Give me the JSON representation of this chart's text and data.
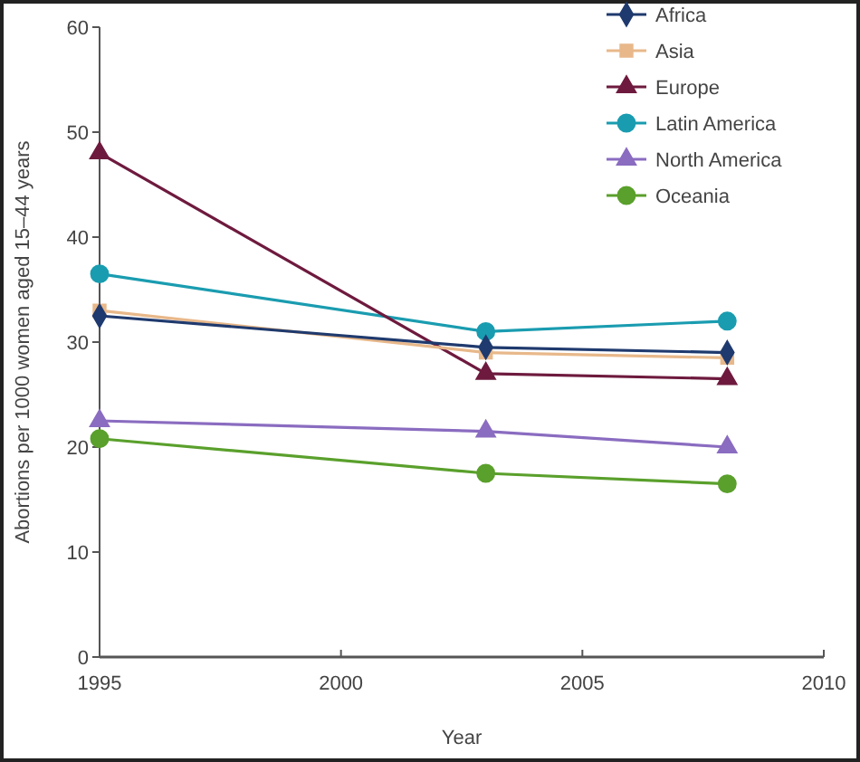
{
  "chart_data": {
    "type": "line",
    "xlabel": "Year",
    "ylabel": "Abortions per 1000 women aged 15–44 years",
    "x": [
      1995,
      2003,
      2008
    ],
    "xlim": [
      1995,
      2010
    ],
    "xticks": [
      1995,
      2000,
      2005,
      2010
    ],
    "ylim": [
      0,
      60
    ],
    "yticks": [
      0,
      10,
      20,
      30,
      40,
      50,
      60
    ],
    "grid": false,
    "legend": "top right",
    "series": [
      {
        "name": "Africa",
        "color": "#1f3a6e",
        "marker": "diamond",
        "values": [
          32.5,
          29.5,
          29
        ]
      },
      {
        "name": "Asia",
        "color": "#e8b88a",
        "marker": "square",
        "values": [
          33,
          29,
          28.5
        ]
      },
      {
        "name": "Europe",
        "color": "#6e1a3e",
        "marker": "triangle",
        "values": [
          48,
          27,
          26.5
        ]
      },
      {
        "name": "Latin America",
        "color": "#1a9cb0",
        "marker": "circle",
        "values": [
          36.5,
          31,
          32
        ]
      },
      {
        "name": "North America",
        "color": "#8a6cc0",
        "marker": "triangle",
        "values": [
          22.5,
          21.5,
          20
        ]
      },
      {
        "name": "Oceania",
        "color": "#5aa02c",
        "marker": "circle",
        "values": [
          20.8,
          17.5,
          16.5
        ]
      }
    ]
  }
}
